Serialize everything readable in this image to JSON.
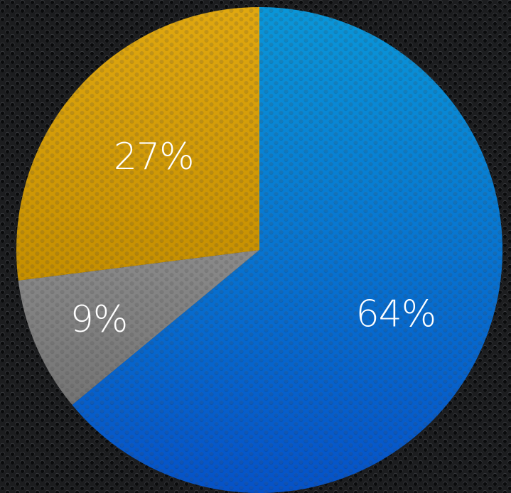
{
  "background": {
    "base_color": "#1c1d1f",
    "texture": "perforated-metal-grille",
    "hole_color": "#0a0b0c",
    "highlight_color": "#3a3c40"
  },
  "chart_data": {
    "type": "pie",
    "start_angle_deg": 0,
    "direction": "clockwise",
    "legend": "none",
    "slices": [
      {
        "value": 64,
        "label": "64%",
        "color_top": "#0a96d8",
        "color_bottom": "#0552c8"
      },
      {
        "value": 9,
        "label": "9%",
        "color_top": "#8a8a8a",
        "color_bottom": "#747474"
      },
      {
        "value": 27,
        "label": "27%",
        "color_top": "#e0a810",
        "color_bottom": "#c58f00"
      }
    ]
  }
}
